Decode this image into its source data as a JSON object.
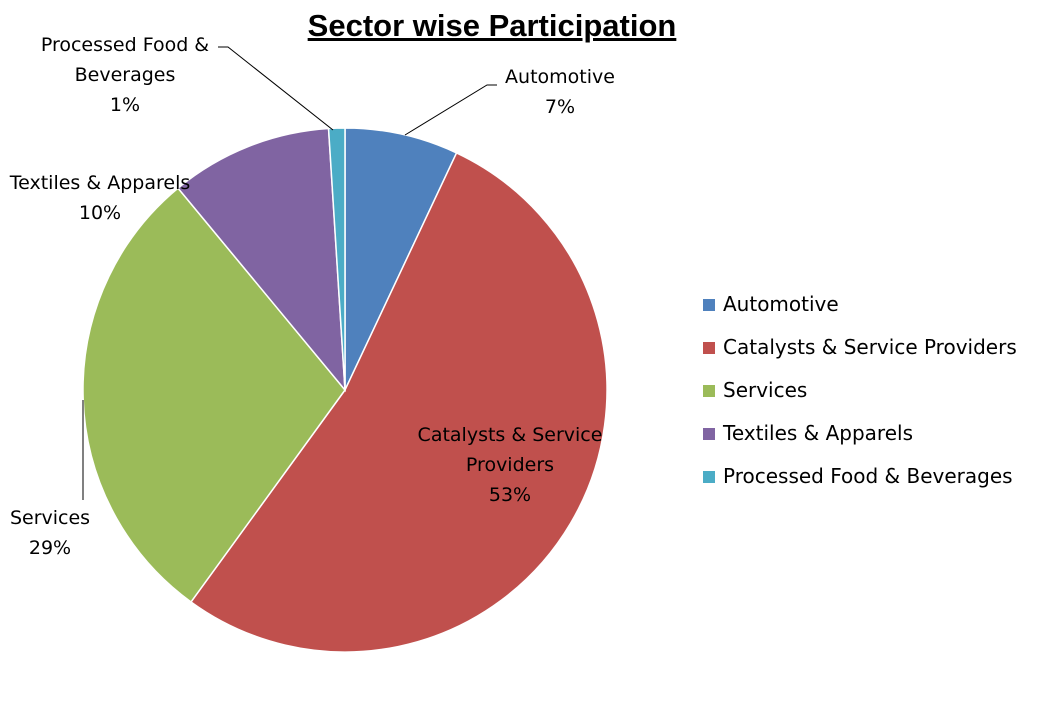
{
  "chart_data": {
    "type": "pie",
    "title": "Sector wise Participation",
    "categories": [
      "Automotive",
      "Catalysts & Service Providers",
      "Services",
      "Textiles & Apparels",
      "Processed Food & Beverages"
    ],
    "values": [
      7,
      53,
      29,
      10,
      1
    ],
    "value_labels": [
      "7%",
      "53%",
      "29%",
      "10%",
      "1%"
    ],
    "colors": [
      "#4f81bd",
      "#c0504d",
      "#9bbb59",
      "#8064a2",
      "#4bacc6"
    ],
    "legend": "right"
  }
}
